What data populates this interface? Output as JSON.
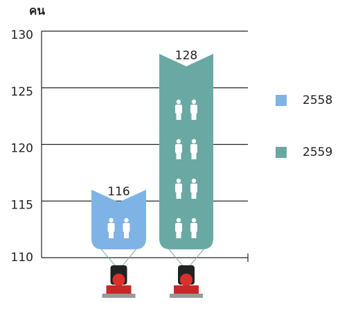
{
  "chart_data": {
    "type": "bar",
    "y_label": "คน",
    "categories": [
      null
    ],
    "series": [
      {
        "name": "2558",
        "color": "#7fb3e6",
        "values": [
          116
        ]
      },
      {
        "name": "2559",
        "color": "#6aa9a3",
        "values": [
          128
        ]
      }
    ],
    "ylim": [
      110,
      130
    ],
    "yticks": [
      110,
      115,
      120,
      125,
      130
    ],
    "grid": true,
    "legend": "right"
  }
}
